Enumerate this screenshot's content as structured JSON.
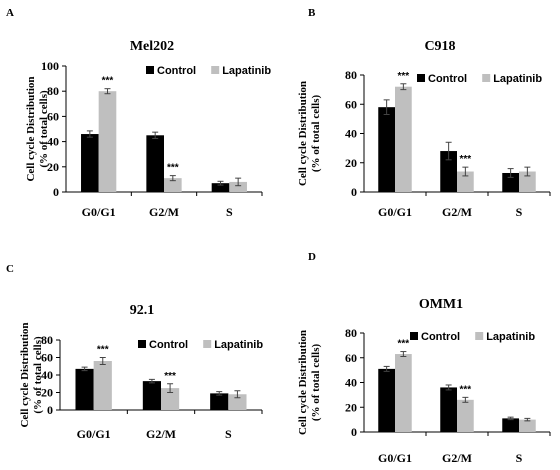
{
  "chart_data": [
    {
      "type": "bar",
      "panel": "A",
      "title": "Mel202",
      "ylabel": "Cell cycle Distribution\n(% of total cells)",
      "categories": [
        "G0/G1",
        "G2/M",
        "S"
      ],
      "series": [
        {
          "name": "Control",
          "color": "#000000",
          "values": [
            46,
            45,
            7
          ],
          "errors": [
            2.5,
            2.5,
            1.5
          ]
        },
        {
          "name": "Lapatinib",
          "color": "#bfbfbf",
          "values": [
            80,
            11,
            8
          ],
          "errors": [
            2,
            2,
            3
          ]
        }
      ],
      "ylim": [
        0,
        100
      ],
      "yticks": [
        0,
        20,
        40,
        60,
        80,
        100
      ],
      "annotations": [
        {
          "category": 0,
          "series": 1,
          "text": "***"
        },
        {
          "category": 1,
          "series": 1,
          "text": "***"
        }
      ]
    },
    {
      "type": "bar",
      "panel": "B",
      "title": "C918",
      "ylabel": "Cell cycle Distribution\n(% of total cells)",
      "categories": [
        "G0/G1",
        "G2/M",
        "S"
      ],
      "series": [
        {
          "name": "Control",
          "color": "#000000",
          "values": [
            58,
            28,
            13
          ],
          "errors": [
            5,
            6,
            3
          ]
        },
        {
          "name": "Lapatinib",
          "color": "#bfbfbf",
          "values": [
            72,
            14,
            14
          ],
          "errors": [
            2,
            3,
            3
          ]
        }
      ],
      "ylim": [
        0,
        80
      ],
      "yticks": [
        0,
        20,
        40,
        60,
        80
      ],
      "annotations": [
        {
          "category": 0,
          "series": 1,
          "text": "***"
        },
        {
          "category": 1,
          "series": 1,
          "text": "***"
        }
      ]
    },
    {
      "type": "bar",
      "panel": "C",
      "title": "92.1",
      "ylabel": "Cell cycle Distribution\n(% of total cells)",
      "categories": [
        "G0/G1",
        "G2/M",
        "S"
      ],
      "series": [
        {
          "name": "Control",
          "color": "#000000",
          "values": [
            47,
            33,
            19
          ],
          "errors": [
            2,
            2,
            2
          ]
        },
        {
          "name": "Lapatinib",
          "color": "#bfbfbf",
          "values": [
            56,
            25,
            18
          ],
          "errors": [
            4,
            5,
            4
          ]
        }
      ],
      "ylim": [
        0,
        80
      ],
      "yticks": [
        0,
        20,
        40,
        60,
        80
      ],
      "annotations": [
        {
          "category": 0,
          "series": 1,
          "text": "***"
        },
        {
          "category": 1,
          "series": 1,
          "text": "***"
        }
      ]
    },
    {
      "type": "bar",
      "panel": "D",
      "title": "OMM1",
      "ylabel": "Cell cycle Distribution\n(% of total cells)",
      "categories": [
        "G0/G1",
        "G2/M",
        "S"
      ],
      "series": [
        {
          "name": "Control",
          "color": "#000000",
          "values": [
            51,
            36,
            11
          ],
          "errors": [
            2,
            2,
            1
          ]
        },
        {
          "name": "Lapatinib",
          "color": "#bfbfbf",
          "values": [
            63,
            26,
            10
          ],
          "errors": [
            2,
            2,
            1
          ]
        }
      ],
      "ylim": [
        0,
        80
      ],
      "yticks": [
        0,
        20,
        40,
        60,
        80
      ],
      "annotations": [
        {
          "category": 0,
          "series": 1,
          "text": "***"
        },
        {
          "category": 1,
          "series": 1,
          "text": "***"
        }
      ]
    }
  ]
}
